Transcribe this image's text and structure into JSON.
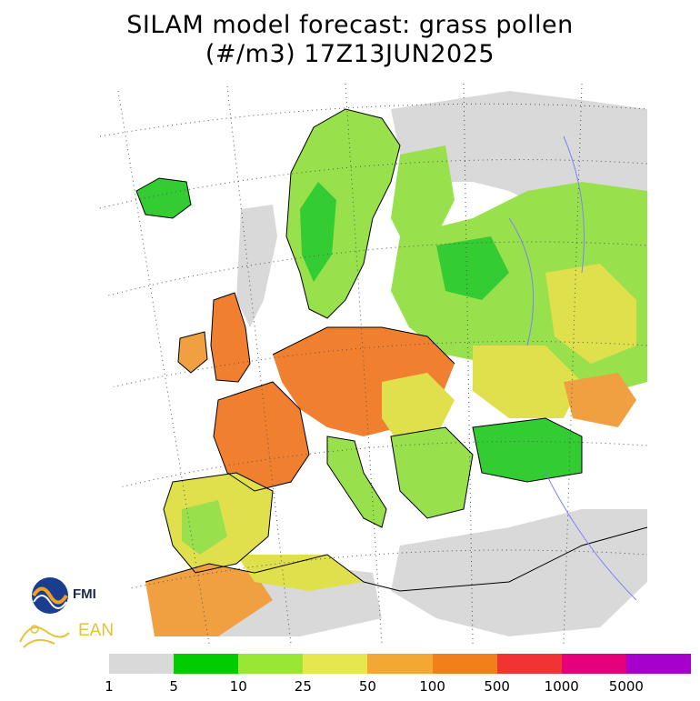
{
  "title": {
    "line1": "SILAM model forecast: grass pollen",
    "line2": "(#/m3) 17Z13JUN2025"
  },
  "logos": {
    "fmi": "FMI",
    "ean": "EAN"
  },
  "legend": {
    "colors": [
      "#d9d9d9",
      "#00cc00",
      "#99e633",
      "#e6e64d",
      "#f2a833",
      "#f2801a",
      "#f23333",
      "#e6007a",
      "#a600cc"
    ],
    "ticks": [
      "1",
      "5",
      "10",
      "25",
      "50",
      "100",
      "500",
      "1000",
      "5000"
    ]
  },
  "map_colors": {
    "none": "#ffffff",
    "very_low": "#d9d9d9",
    "low": "#33cc33",
    "mid_low": "#99e04d",
    "mid": "#e0e04d",
    "high": "#f0a040",
    "very_high": "#f08030",
    "coast": "#000000",
    "rivers": "#8080ff"
  }
}
